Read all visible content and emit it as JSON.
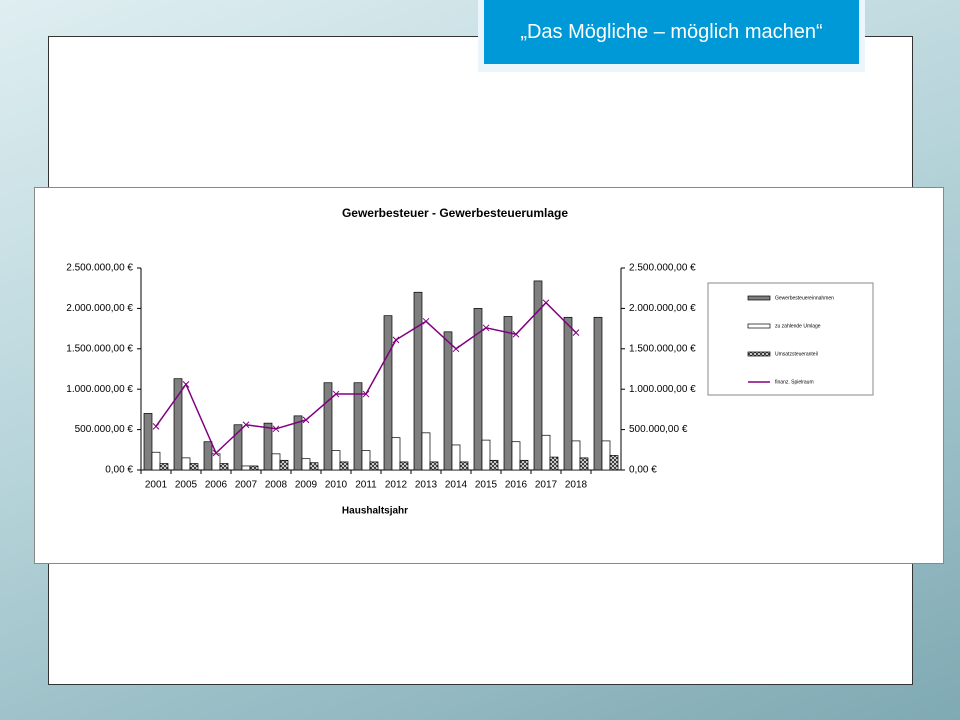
{
  "header": {
    "title": "„Das Mögliche – möglich machen“"
  },
  "chart_data": {
    "type": "bar",
    "title": "Gewerbesteuer - Gewerbesteuerumlage",
    "x_label": "Haushaltsjahr",
    "categories": [
      "2001",
      "2005",
      "2006",
      "2007",
      "2008",
      "2009",
      "2010",
      "2011",
      "2012",
      "2013",
      "2014",
      "2015",
      "2016",
      "2017",
      "2018",
      null
    ],
    "series": [
      {
        "name": "Gewerbesteuereinnahmen",
        "color": "#7f7f7f",
        "values": [
          700000,
          1130000,
          350000,
          560000,
          580000,
          670000,
          1080000,
          1080000,
          1910000,
          2200000,
          1710000,
          2000000,
          1900000,
          2340000,
          1890000,
          1890000
        ]
      },
      {
        "name": "zu zahlende Umlage",
        "color": "#ffffff",
        "values": [
          220000,
          150000,
          200000,
          50000,
          200000,
          140000,
          240000,
          240000,
          400000,
          460000,
          310000,
          370000,
          350000,
          430000,
          360000,
          360000
        ]
      },
      {
        "name": "Umsatzsteueranteil",
        "color": "#333333",
        "values": [
          80000,
          80000,
          80000,
          50000,
          120000,
          90000,
          100000,
          100000,
          100000,
          100000,
          100000,
          120000,
          120000,
          160000,
          150000,
          180000
        ]
      },
      {
        "name": "finanz. Spielraum",
        "type": "line",
        "axis": "y2",
        "color": "#800080",
        "values": [
          540000,
          1060000,
          210000,
          560000,
          510000,
          620000,
          940000,
          940000,
          1610000,
          1840000,
          1500000,
          1760000,
          1680000,
          2070000,
          1700000,
          null
        ]
      }
    ],
    "ylim": [
      0,
      2500000
    ],
    "yticks": [
      {
        "value": 0,
        "label": "0,00 €"
      },
      {
        "value": 500000,
        "label": "500.000,00 €"
      },
      {
        "value": 1000000,
        "label": "1.000.000,00 €"
      },
      {
        "value": 1500000,
        "label": "1.500.000,00 €"
      },
      {
        "value": 2000000,
        "label": "2.000.000,00 €"
      },
      {
        "value": 2500000,
        "label": "2.500.000,00 €"
      }
    ],
    "y2lim": [
      0,
      2500000
    ],
    "y2ticks": [
      {
        "value": 0,
        "label": "0,00 €"
      },
      {
        "value": 500000,
        "label": "500.000,00 €"
      },
      {
        "value": 1000000,
        "label": "1.000.000,00 €"
      },
      {
        "value": 1500000,
        "label": "1.500.000,00 €"
      },
      {
        "value": 2000000,
        "label": "2.000.000,00 €"
      },
      {
        "value": 2500000,
        "label": "2.500.000,00 €"
      }
    ],
    "grid": false,
    "legend": "right"
  }
}
